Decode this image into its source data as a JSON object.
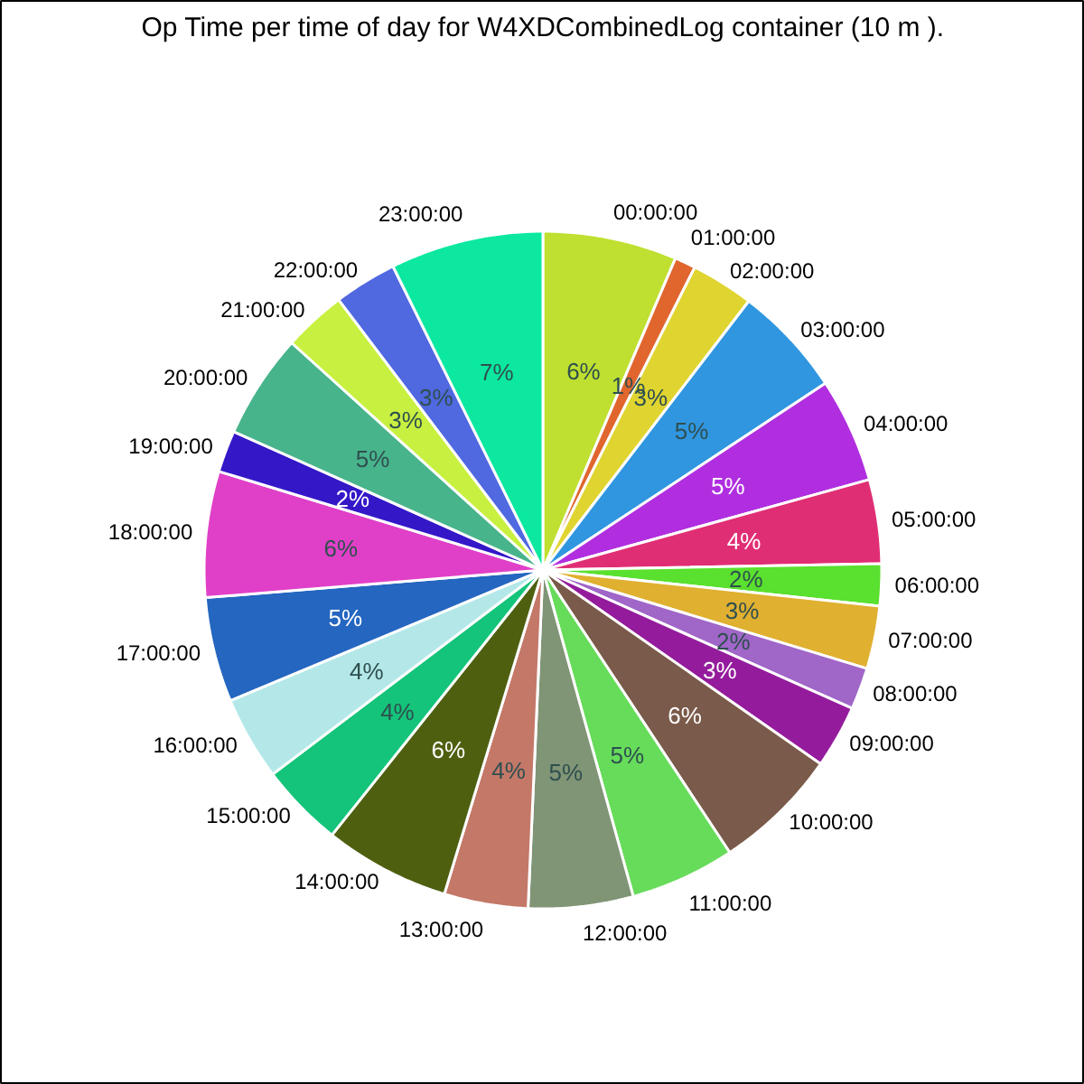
{
  "chart_data": {
    "type": "pie",
    "title": "Op Time per time of day for W4XDCombinedLog container (10 m ).",
    "categories": [
      "00:00:00",
      "01:00:00",
      "02:00:00",
      "03:00:00",
      "04:00:00",
      "05:00:00",
      "06:00:00",
      "07:00:00",
      "08:00:00",
      "09:00:00",
      "10:00:00",
      "11:00:00",
      "12:00:00",
      "13:00:00",
      "14:00:00",
      "15:00:00",
      "16:00:00",
      "17:00:00",
      "18:00:00",
      "19:00:00",
      "20:00:00",
      "21:00:00",
      "22:00:00",
      "23:00:00"
    ],
    "values": [
      6.4,
      1,
      3,
      5.3,
      5,
      4,
      2,
      3,
      2,
      3,
      6,
      5,
      5,
      4,
      6,
      4,
      4,
      5,
      6,
      2,
      5,
      3,
      3,
      7.3
    ],
    "value_labels": [
      "6%",
      "1%",
      "3%",
      "5%",
      "5%",
      "4%",
      "2%",
      "3%",
      "2%",
      "3%",
      "6%",
      "5%",
      "5%",
      "4%",
      "6%",
      "4%",
      "4%",
      "5%",
      "6%",
      "2%",
      "5%",
      "3%",
      "3%",
      "7%"
    ],
    "colors": [
      "#bfe030",
      "#e0662e",
      "#e0d430",
      "#3096e0",
      "#b02ee0",
      "#e02e74",
      "#5ae02e",
      "#e0b030",
      "#a066c8",
      "#941c9c",
      "#7a5a4a",
      "#66dc5a",
      "#809476",
      "#c47868",
      "#4e6010",
      "#14c47a",
      "#b4e8e8",
      "#2466c0",
      "#e040c8",
      "#3418c8",
      "#48b48c",
      "#c8f040",
      "#5068e0",
      "#0ce8a0"
    ],
    "legend": false
  }
}
